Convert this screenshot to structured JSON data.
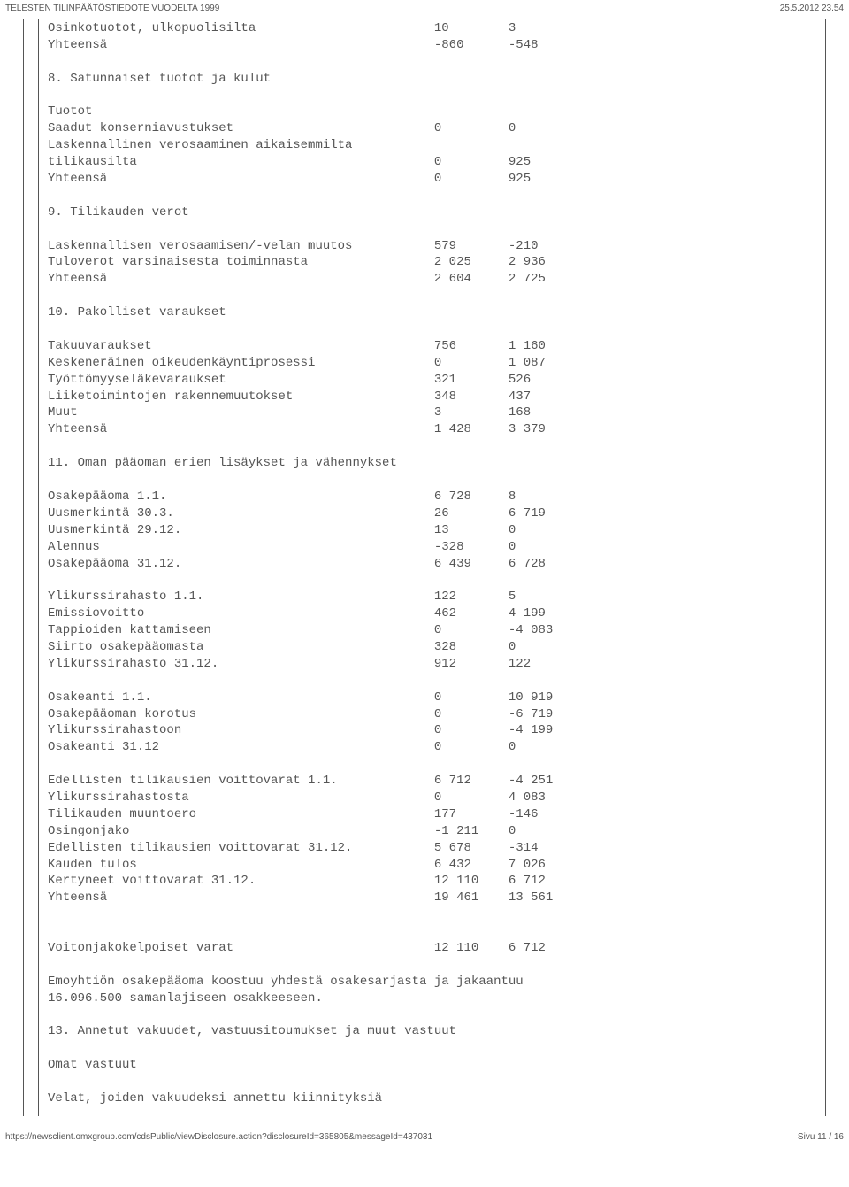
{
  "header": {
    "title": "TELESTEN TILINPÄÄTÖSTIEDOTE VUODELTA 1999",
    "date": "25.5.2012 23.54"
  },
  "layout": {
    "col1_width": 52,
    "col2_width": 10
  },
  "lines": [
    {
      "label": "Osinkotuotot, ulkopuolisilta",
      "c1": "10",
      "c2": "3"
    },
    {
      "label": "Yhteensä",
      "c1": "-860",
      "c2": "-548"
    },
    {
      "blank": true
    },
    {
      "label": "8. Satunnaiset tuotot ja kulut"
    },
    {
      "blank": true
    },
    {
      "label": "Tuotot"
    },
    {
      "label": "Saadut konserniavustukset",
      "c1": "0",
      "c2": "0"
    },
    {
      "label": "Laskennallinen verosaaminen aikaisemmilta"
    },
    {
      "label": "tilikausilta",
      "c1": "0",
      "c2": "925"
    },
    {
      "label": "Yhteensä",
      "c1": "0",
      "c2": "925"
    },
    {
      "blank": true
    },
    {
      "label": "9. Tilikauden verot"
    },
    {
      "blank": true
    },
    {
      "label": "Laskennallisen verosaamisen/-velan muutos",
      "c1": "579",
      "c2": "-210"
    },
    {
      "label": "Tuloverot varsinaisesta toiminnasta",
      "c1": "2 025",
      "c2": "2 936"
    },
    {
      "label": "Yhteensä",
      "c1": "2 604",
      "c2": "2 725"
    },
    {
      "blank": true
    },
    {
      "label": "10. Pakolliset varaukset"
    },
    {
      "blank": true
    },
    {
      "label": "Takuuvaraukset",
      "c1": "756",
      "c2": "1 160"
    },
    {
      "label": "Keskeneräinen oikeudenkäyntiprosessi",
      "c1": "0",
      "c2": "1 087"
    },
    {
      "label": "Työttömyyseläkevaraukset",
      "c1": "321",
      "c2": "526"
    },
    {
      "label": "Liiketoimintojen rakennemuutokset",
      "c1": "348",
      "c2": "437"
    },
    {
      "label": "Muut",
      "c1": "3",
      "c2": "168"
    },
    {
      "label": "Yhteensä",
      "c1": "1 428",
      "c2": "3 379"
    },
    {
      "blank": true
    },
    {
      "label": "11. Oman pääoman erien lisäykset ja vähennykset"
    },
    {
      "blank": true
    },
    {
      "label": "Osakepääoma 1.1.",
      "c1": "6 728",
      "c2": "8"
    },
    {
      "label": "Uusmerkintä 30.3.",
      "c1": "26",
      "c2": "6 719"
    },
    {
      "label": "Uusmerkintä 29.12.",
      "c1": "13",
      "c2": "0"
    },
    {
      "label": "Alennus",
      "c1": "-328",
      "c2": "0"
    },
    {
      "label": "Osakepääoma 31.12.",
      "c1": "6 439",
      "c2": "6 728"
    },
    {
      "blank": true
    },
    {
      "label": "Ylikurssirahasto 1.1.",
      "c1": "122",
      "c2": "5"
    },
    {
      "label": "Emissiovoitto",
      "c1": "462",
      "c2": "4 199"
    },
    {
      "label": "Tappioiden kattamiseen",
      "c1": "0",
      "c2": "-4 083"
    },
    {
      "label": "Siirto osakepääomasta",
      "c1": "328",
      "c2": "0"
    },
    {
      "label": "Ylikurssirahasto 31.12.",
      "c1": "912",
      "c2": "122"
    },
    {
      "blank": true
    },
    {
      "label": "Osakeanti 1.1.",
      "c1": "0",
      "c2": "10 919"
    },
    {
      "label": "Osakepääoman korotus",
      "c1": "0",
      "c2": "-6 719"
    },
    {
      "label": "Ylikurssirahastoon",
      "c1": "0",
      "c2": "-4 199"
    },
    {
      "label": "Osakeanti 31.12",
      "c1": "0",
      "c2": "0"
    },
    {
      "blank": true
    },
    {
      "label": "Edellisten tilikausien voittovarat 1.1.",
      "c1": "6 712",
      "c2": "-4 251"
    },
    {
      "label": "Ylikurssirahastosta",
      "c1": "0",
      "c2": "4 083"
    },
    {
      "label": "Tilikauden muuntoero",
      "c1": "177",
      "c2": "-146"
    },
    {
      "label": "Osingonjako",
      "c1": "-1 211",
      "c2": "0"
    },
    {
      "label": "Edellisten tilikausien voittovarat 31.12.",
      "c1": "5 678",
      "c2": "-314"
    },
    {
      "label": "Kauden tulos",
      "c1": "6 432",
      "c2": "7 026"
    },
    {
      "label": "Kertyneet voittovarat 31.12.",
      "c1": "12 110",
      "c2": "6 712"
    },
    {
      "label": "Yhteensä",
      "c1": "19 461",
      "c2": "13 561"
    },
    {
      "blank": true
    },
    {
      "blank": true
    },
    {
      "label": "Voitonjakokelpoiset varat",
      "c1": "12 110",
      "c2": "6 712"
    },
    {
      "blank": true
    },
    {
      "label": "Emoyhtiön osakepääoma koostuu yhdestä osakesarjasta ja jakaantuu"
    },
    {
      "label": "16.096.500 samanlajiseen osakkeeseen."
    },
    {
      "blank": true
    },
    {
      "label": "13. Annetut vakuudet, vastuusitoumukset ja muut vastuut"
    },
    {
      "blank": true
    },
    {
      "label": "Omat vastuut"
    },
    {
      "blank": true
    },
    {
      "label": "Velat, joiden vakuudeksi annettu kiinnityksiä"
    }
  ],
  "footer": {
    "url": "https://newsclient.omxgroup.com/cdsPublic/viewDisclosure.action?disclosureId=365805&messageId=437031",
    "page": "Sivu 11 / 16"
  }
}
